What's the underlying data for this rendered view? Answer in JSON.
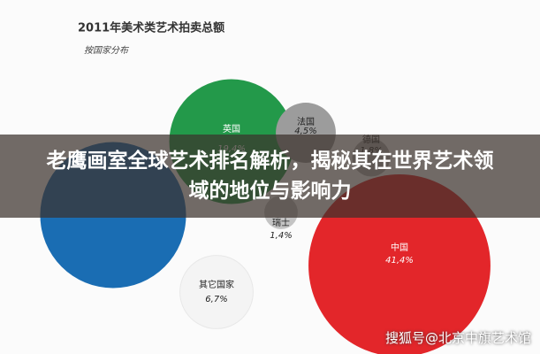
{
  "chart_data": {
    "type": "bubble",
    "title": "2011年美术类艺术拍卖总额",
    "subtitle": "按国家分布",
    "points": [
      {
        "name": "英国",
        "value": 19.4,
        "value_label": "19,4%",
        "color": "#23994a"
      },
      {
        "name": null,
        "value": 26.6,
        "value_label": null,
        "color": "#1a6db3"
      },
      {
        "name": "法国",
        "value": 4.5,
        "value_label": "4,5%",
        "color": "#9c9c9c"
      },
      {
        "name": "德国",
        "value": 1.8,
        "value_label": "1,8%",
        "color": "#b5b5b5"
      },
      {
        "name": "瑞士",
        "value": 1.4,
        "value_label": "1,4%",
        "color": "#c4c4c4"
      },
      {
        "name": "中国",
        "value": 41.4,
        "value_label": "41,4%",
        "color": "#e3262a"
      },
      {
        "name": "其它国家",
        "value": 6.7,
        "value_label": "6,7%",
        "color": "#f4f4f4"
      }
    ]
  },
  "banner": "老鹰画室全球艺术排名解析，揭秘其在世界艺术领域的地位与影响力",
  "watermark": "搜狐号@北京中旗艺术馆"
}
